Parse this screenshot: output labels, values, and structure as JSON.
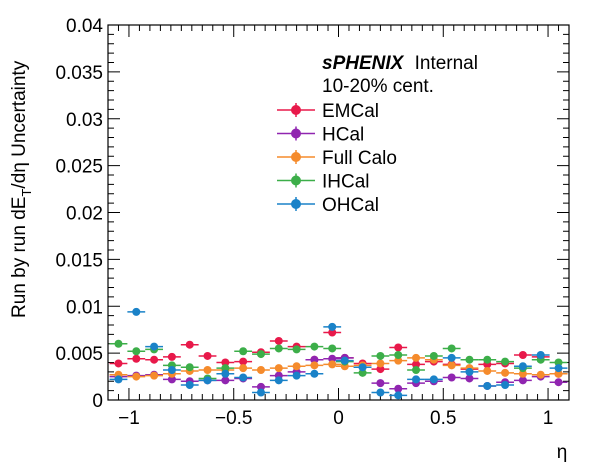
{
  "chart_data": {
    "type": "scatter",
    "brand": "sPHENIX",
    "brand_suffix": "Internal",
    "subtitle": "10-20% cent.",
    "xlabel": "η",
    "ylabel": "Run by run dE_T/dη Uncertainty",
    "xlim": [
      -1.1,
      1.1
    ],
    "ylim": [
      0,
      0.04
    ],
    "xticks": [
      -1,
      -0.5,
      0,
      0.5,
      1
    ],
    "xtick_labels": [
      "−1",
      "−0.5",
      "0",
      "0.5",
      "1"
    ],
    "yticks": [
      0,
      0.005,
      0.01,
      0.015,
      0.02,
      0.025,
      0.03,
      0.035,
      0.04
    ],
    "ytick_labels": [
      "0",
      "0.005",
      "0.01",
      "0.015",
      "0.02",
      "0.025",
      "0.03",
      "0.035",
      "0.04"
    ],
    "grid": false,
    "legend_position": "top-center",
    "x": [
      -1.05,
      -0.965,
      -0.88,
      -0.795,
      -0.71,
      -0.625,
      -0.54,
      -0.455,
      -0.37,
      -0.285,
      -0.2,
      -0.115,
      -0.03,
      0.03,
      0.115,
      0.2,
      0.285,
      0.37,
      0.455,
      0.54,
      0.625,
      0.71,
      0.795,
      0.88,
      0.965,
      1.05
    ],
    "series": [
      {
        "name": "EMCal",
        "color": "#e8194a",
        "values": [
          0.0039,
          0.0044,
          0.0043,
          0.0046,
          0.0059,
          0.0047,
          0.004,
          0.0041,
          0.0051,
          0.0063,
          0.0057,
          0.0043,
          0.0072,
          0.0045,
          0.0039,
          0.0033,
          0.0056,
          0.0038,
          0.0041,
          0.0038,
          0.0033,
          0.0038,
          0.0039,
          0.0048,
          0.0046,
          0.0028
        ]
      },
      {
        "name": "HCal",
        "color": "#9025b0",
        "values": [
          0.0025,
          0.0026,
          0.0027,
          0.0022,
          0.002,
          0.0021,
          0.0021,
          0.0023,
          0.0014,
          0.0026,
          0.003,
          0.0043,
          0.0044,
          0.0045,
          0.0035,
          0.0018,
          0.0012,
          0.0018,
          0.002,
          0.0024,
          0.0023,
          0.0015,
          0.0019,
          0.0021,
          0.0025,
          0.0019
        ]
      },
      {
        "name": "Full Calo",
        "color": "#f58b2c",
        "values": [
          0.0027,
          0.0025,
          0.0026,
          0.0028,
          0.0031,
          0.0032,
          0.0032,
          0.0034,
          0.0032,
          0.0034,
          0.0036,
          0.0037,
          0.0038,
          0.0036,
          0.0037,
          0.0039,
          0.0042,
          0.0045,
          0.0043,
          0.0037,
          0.0034,
          0.0031,
          0.0029,
          0.0028,
          0.0027,
          0.0028
        ]
      },
      {
        "name": "IHCal",
        "color": "#3cae49",
        "values": [
          0.006,
          0.0052,
          0.0054,
          0.0037,
          0.0035,
          0.0023,
          0.0034,
          0.0052,
          0.0049,
          0.0055,
          0.0054,
          0.0057,
          0.0055,
          0.0041,
          0.0029,
          0.0047,
          0.0048,
          0.0032,
          0.0047,
          0.0055,
          0.0043,
          0.0043,
          0.0041,
          0.0034,
          0.0043,
          0.004
        ]
      },
      {
        "name": "OHCal",
        "color": "#1a82c8",
        "values": [
          0.0022,
          0.0094,
          0.0057,
          0.0032,
          0.0016,
          0.0021,
          0.0028,
          0.0024,
          0.0008,
          0.0021,
          0.0026,
          0.0028,
          0.0078,
          0.0042,
          0.0035,
          0.0008,
          0.0005,
          0.0022,
          0.0022,
          0.0045,
          0.003,
          0.0015,
          0.0016,
          0.0036,
          0.0048,
          0.0034
        ]
      }
    ]
  }
}
